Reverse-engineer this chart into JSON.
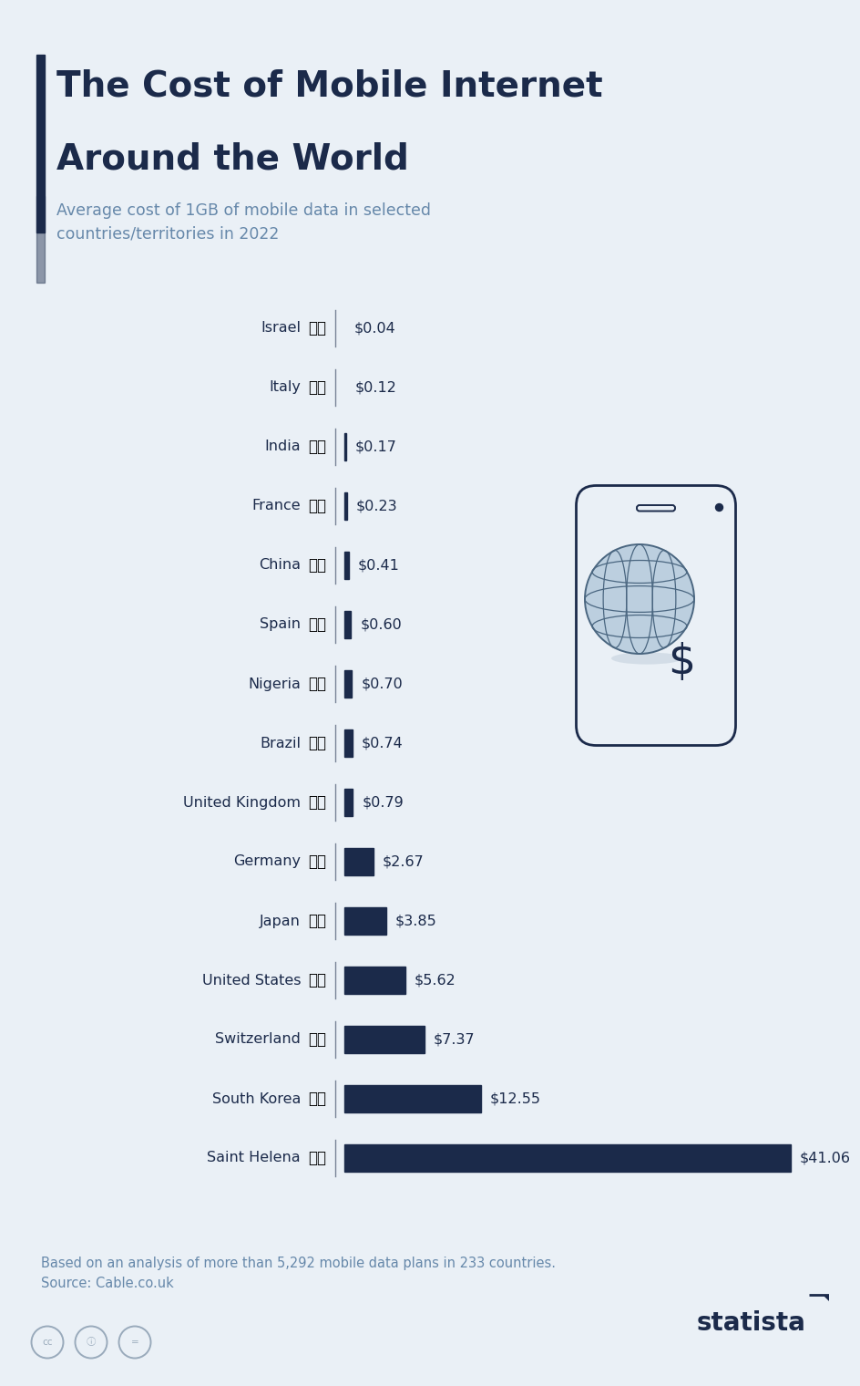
{
  "title_line1": "The Cost of Mobile Internet",
  "title_line2": "Around the World",
  "subtitle": "Average cost of 1GB of mobile data in selected\ncountries/territories in 2022",
  "footnote": "Based on an analysis of more than 5,292 mobile data plans in 233 countries.\nSource: Cable.co.uk",
  "countries": [
    "Israel",
    "Italy",
    "India",
    "France",
    "China",
    "Spain",
    "Nigeria",
    "Brazil",
    "United Kingdom",
    "Germany",
    "Japan",
    "United States",
    "Switzerland",
    "South Korea",
    "Saint Helena"
  ],
  "values": [
    0.04,
    0.12,
    0.17,
    0.23,
    0.41,
    0.6,
    0.7,
    0.74,
    0.79,
    2.67,
    3.85,
    5.62,
    7.37,
    12.55,
    41.06
  ],
  "labels": [
    "$0.04",
    "$0.12",
    "$0.17",
    "$0.23",
    "$0.41",
    "$0.60",
    "$0.70",
    "$0.74",
    "$0.79",
    "$2.67",
    "$3.85",
    "$5.62",
    "$7.37",
    "$12.55",
    "$41.06"
  ],
  "bar_color": "#1b2a4a",
  "background_color": "#eaf0f6",
  "title_color": "#1b2a4a",
  "subtitle_color": "#6688aa",
  "text_color": "#1b2a4a",
  "accent_color": "#1b2a4a",
  "footnote_color": "#6688aa",
  "flag_emojis": [
    "🇮🇱",
    "🇮🇹",
    "🇮🇳",
    "🇫🇷",
    "🇨🇳",
    "🇪🇸",
    "🇳🇬",
    "🇧🇷",
    "🇬🇧",
    "🇩🇪",
    "🇯🇵",
    "🇺🇸",
    "🇨🇭",
    "🇰🇷",
    "🇸🇭"
  ]
}
